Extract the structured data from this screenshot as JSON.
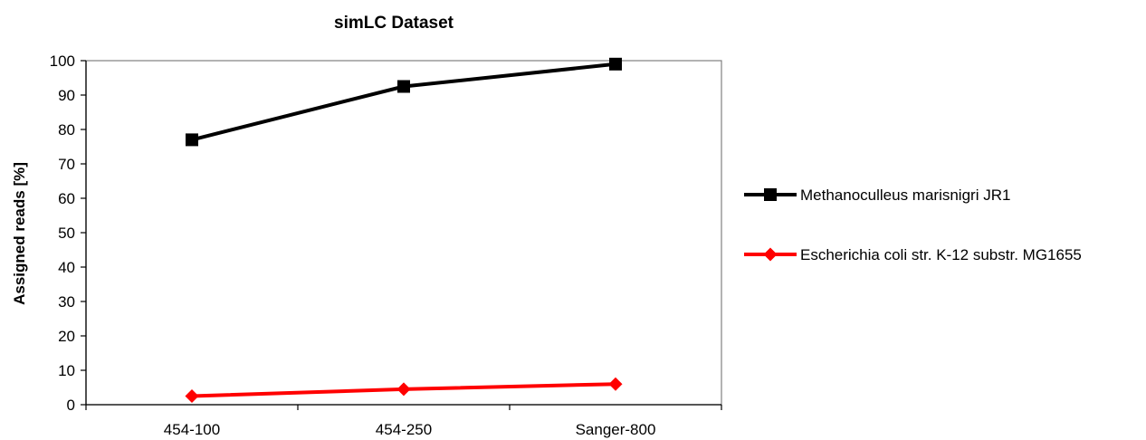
{
  "chart_data": {
    "type": "line",
    "title": "simLC Dataset",
    "xlabel": "",
    "ylabel": "Assigned reads [%]",
    "categories": [
      "454-100",
      "454-250",
      "Sanger-800"
    ],
    "ylim": [
      0,
      100
    ],
    "yticks": [
      0,
      10,
      20,
      30,
      40,
      50,
      60,
      70,
      80,
      90,
      100
    ],
    "grid": false,
    "legend_position": "right",
    "series": [
      {
        "name": "Methanoculleus marisnigri JR1",
        "values": [
          77,
          92.5,
          99
        ],
        "color": "#000000",
        "marker": "square"
      },
      {
        "name": "Escherichia coli str. K-12 substr. MG1655",
        "values": [
          2.5,
          4.5,
          6
        ],
        "color": "#ff0000",
        "marker": "diamond"
      }
    ]
  }
}
